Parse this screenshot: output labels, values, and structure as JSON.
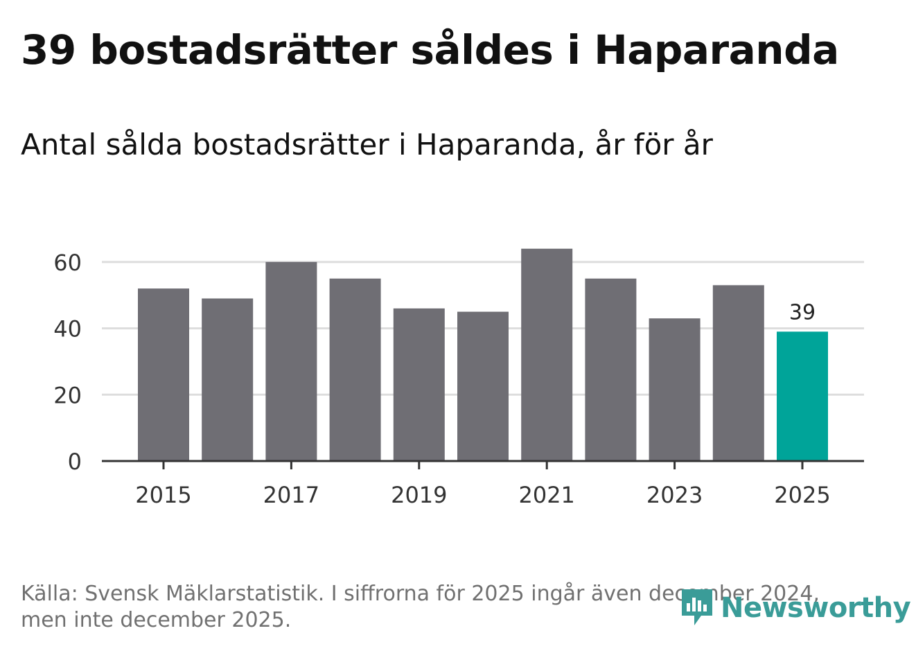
{
  "header": {
    "title": "39 bostadsrätter såldes i Haparanda",
    "subtitle": "Antal sålda bostadsrätter i Haparanda, år för år"
  },
  "footer": {
    "source": "Källa: Svensk Mäklarstatistik. I siffrorna för 2025 ingår även december 2024, men inte december 2025.",
    "brand": "Newsworthy"
  },
  "colors": {
    "bar": "#6f6e74",
    "highlight": "#00a499",
    "grid": "#dddddd",
    "axis": "#333333",
    "brand": "#3a9c98"
  },
  "chart_data": {
    "type": "bar",
    "title": "Antal sålda bostadsrätter i Haparanda, år för år",
    "xlabel": "",
    "ylabel": "",
    "categories": [
      "2015",
      "2016",
      "2017",
      "2018",
      "2019",
      "2020",
      "2021",
      "2022",
      "2023",
      "2024",
      "2025"
    ],
    "values": [
      52,
      49,
      60,
      55,
      46,
      45,
      64,
      55,
      43,
      53,
      39
    ],
    "highlight_index": 10,
    "highlight_label": "39",
    "x_tick_labels": [
      "2015",
      "2017",
      "2019",
      "2021",
      "2023",
      "2025"
    ],
    "y_ticks": [
      0,
      20,
      40,
      60
    ],
    "ylim": [
      0,
      70
    ],
    "grid": true
  }
}
